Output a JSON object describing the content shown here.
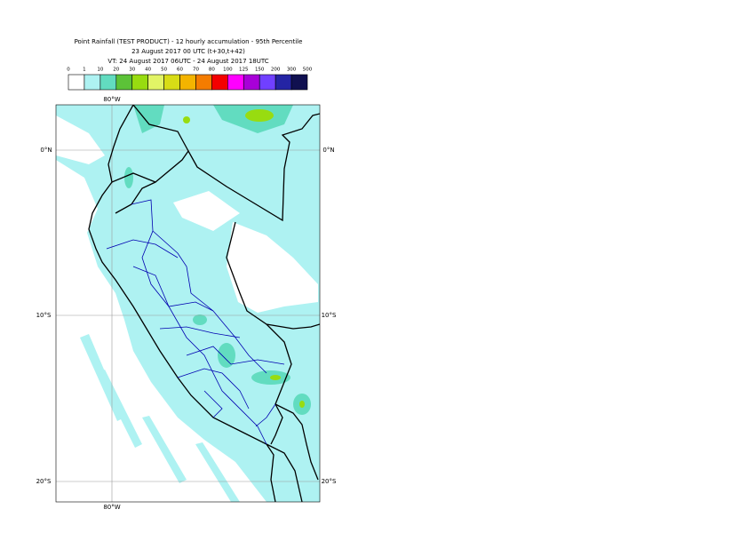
{
  "title_lines": [
    "Point Rainfall (TEST PRODUCT) - 12 hourly accumulation - 95th Percentile",
    "23 August 2017 00 UTC (t+30,t+42)",
    "VT: 24 August 2017 06UTC - 24 August 2017 18UTC"
  ],
  "legend": {
    "labels": [
      "0",
      "1",
      "10",
      "20",
      "30",
      "40",
      "50",
      "60",
      "70",
      "80",
      "100",
      "125",
      "150",
      "200",
      "300",
      "500"
    ],
    "colors": [
      "#ffffff",
      "#aef2f2",
      "#62dcc0",
      "#5cc238",
      "#98dc10",
      "#e2f466",
      "#d8dc16",
      "#f4b400",
      "#f47c00",
      "#f40000",
      "#ff00ff",
      "#a800d8",
      "#7040ff",
      "#2424a4",
      "#101050"
    ]
  },
  "axes": {
    "lat_labels": [
      "0°N",
      "10°S",
      "20°S"
    ],
    "lon_label": "80°W"
  }
}
